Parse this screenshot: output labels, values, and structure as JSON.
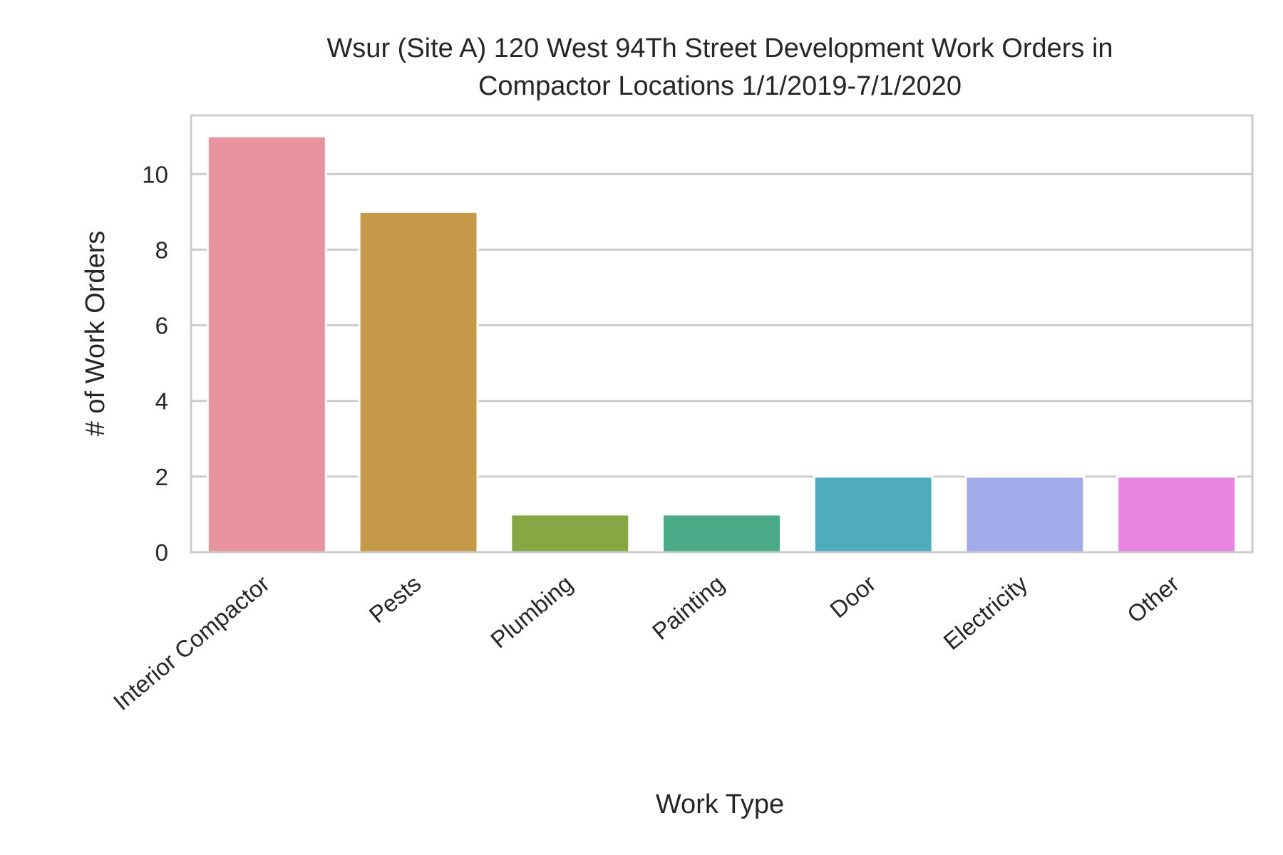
{
  "chart_data": {
    "type": "bar",
    "title_lines": [
      "Wsur (Site A) 120 West 94Th Street Development Work Orders in",
      "Compactor Locations 1/1/2019-7/1/2020"
    ],
    "xlabel": "Work Type",
    "ylabel": "# of Work Orders",
    "categories": [
      "Interior Compactor",
      "Pests",
      "Plumbing",
      "Painting",
      "Door",
      "Electricity",
      "Other"
    ],
    "values": [
      11,
      9,
      1,
      1,
      2,
      2,
      2
    ],
    "colors": [
      "#e8949f",
      "#c49a48",
      "#86a844",
      "#4aaa88",
      "#4eacbc",
      "#a1acea",
      "#e686e0"
    ],
    "ylim": [
      0,
      11.55
    ],
    "yticks": [
      0,
      2,
      4,
      6,
      8,
      10
    ],
    "grid": "horizontal",
    "legend": "none"
  }
}
